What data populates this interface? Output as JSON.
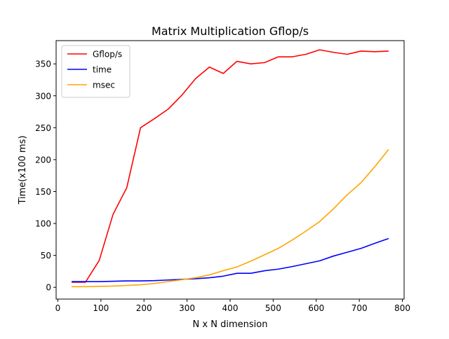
{
  "chart_data": {
    "type": "line",
    "title": "Matrix Multiplication Gflop/s",
    "xlabel": "N x N dimension",
    "ylabel": "Time(x100 ms)",
    "xlim": [
      -4,
      804
    ],
    "ylim": [
      -18.4,
      386.4
    ],
    "xticks": [
      0,
      100,
      200,
      300,
      400,
      500,
      600,
      700,
      800
    ],
    "yticks": [
      0,
      50,
      100,
      150,
      200,
      250,
      300,
      350
    ],
    "grid": false,
    "legend_position": "top-left",
    "series": [
      {
        "name": "Gflop/s",
        "color": "#ff0000",
        "x": [
          32,
          64,
          96,
          128,
          160,
          192,
          224,
          256,
          288,
          320,
          352,
          384,
          416,
          448,
          480,
          512,
          544,
          576,
          608,
          640,
          672,
          704,
          736,
          768
        ],
        "y": [
          8,
          8,
          42,
          114,
          156,
          250,
          264,
          279,
          301,
          327,
          345,
          335,
          354,
          350,
          352,
          361,
          361,
          365,
          372,
          368,
          365,
          370,
          369,
          370
        ]
      },
      {
        "name": "time",
        "color": "#0000ff",
        "x": [
          32,
          64,
          96,
          128,
          160,
          192,
          224,
          256,
          288,
          320,
          352,
          384,
          416,
          448,
          480,
          512,
          544,
          576,
          608,
          640,
          672,
          704,
          736,
          768
        ],
        "y": [
          9,
          9,
          9,
          9.5,
          10,
          10,
          10.5,
          11.5,
          12.5,
          13.5,
          15,
          17.5,
          22,
          22,
          26,
          28.5,
          32.5,
          37,
          41.5,
          49,
          55,
          61,
          69,
          76.5
        ]
      },
      {
        "name": "msec",
        "color": "#ffa500",
        "x": [
          32,
          64,
          96,
          128,
          160,
          192,
          224,
          256,
          288,
          320,
          352,
          384,
          416,
          448,
          480,
          512,
          544,
          576,
          608,
          640,
          672,
          704,
          736,
          768
        ],
        "y": [
          1,
          1,
          1.5,
          2,
          3,
          4,
          6,
          9,
          12,
          15,
          19.5,
          26,
          32,
          41,
          51,
          61,
          74,
          88,
          103,
          123,
          145,
          164,
          189,
          216
        ]
      }
    ]
  }
}
